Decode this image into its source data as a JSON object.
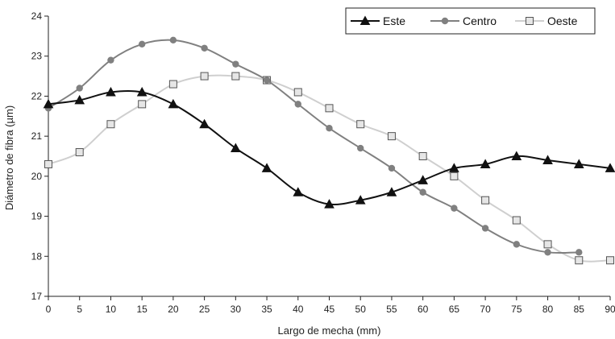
{
  "chart_data": {
    "type": "line",
    "xlabel": "Largo de mecha (mm)",
    "ylabel": "Diámetro de fibra (µm)",
    "xlim": [
      0,
      90
    ],
    "ylim": [
      17,
      24
    ],
    "xticks": [
      0,
      5,
      10,
      15,
      20,
      25,
      30,
      35,
      40,
      45,
      50,
      55,
      60,
      65,
      70,
      75,
      80,
      85,
      90
    ],
    "yticks": [
      17,
      18,
      19,
      20,
      21,
      22,
      23,
      24
    ],
    "grid": false,
    "legend_position": "top-right",
    "series": [
      {
        "name": "Este",
        "color": "#111111",
        "marker": "triangle",
        "x": [
          0,
          5,
          10,
          15,
          20,
          25,
          30,
          35,
          40,
          45,
          50,
          55,
          60,
          65,
          70,
          75,
          80,
          85,
          90
        ],
        "values": [
          21.8,
          21.9,
          22.1,
          22.1,
          21.8,
          21.3,
          20.7,
          20.2,
          19.6,
          19.3,
          19.4,
          19.6,
          19.9,
          20.2,
          20.3,
          20.5,
          20.4,
          20.3,
          20.2
        ]
      },
      {
        "name": "Centro",
        "color": "#808080",
        "marker": "circle",
        "x": [
          0,
          5,
          10,
          15,
          20,
          25,
          30,
          35,
          40,
          45,
          50,
          55,
          60,
          65,
          70,
          75,
          80,
          85
        ],
        "values": [
          21.7,
          22.2,
          22.9,
          23.3,
          23.4,
          23.2,
          22.8,
          22.4,
          21.8,
          21.2,
          20.7,
          20.2,
          19.6,
          19.2,
          18.7,
          18.3,
          18.1,
          18.1
        ]
      },
      {
        "name": "Oeste",
        "color": "#cfcfcf",
        "marker": "square",
        "x": [
          0,
          5,
          10,
          15,
          20,
          25,
          30,
          35,
          40,
          45,
          50,
          55,
          60,
          65,
          70,
          75,
          80,
          85,
          90
        ],
        "values": [
          20.3,
          20.6,
          21.3,
          21.8,
          22.3,
          22.5,
          22.5,
          22.4,
          22.1,
          21.7,
          21.3,
          21.0,
          20.5,
          20.0,
          19.4,
          18.9,
          18.3,
          17.9,
          17.9
        ]
      }
    ]
  }
}
